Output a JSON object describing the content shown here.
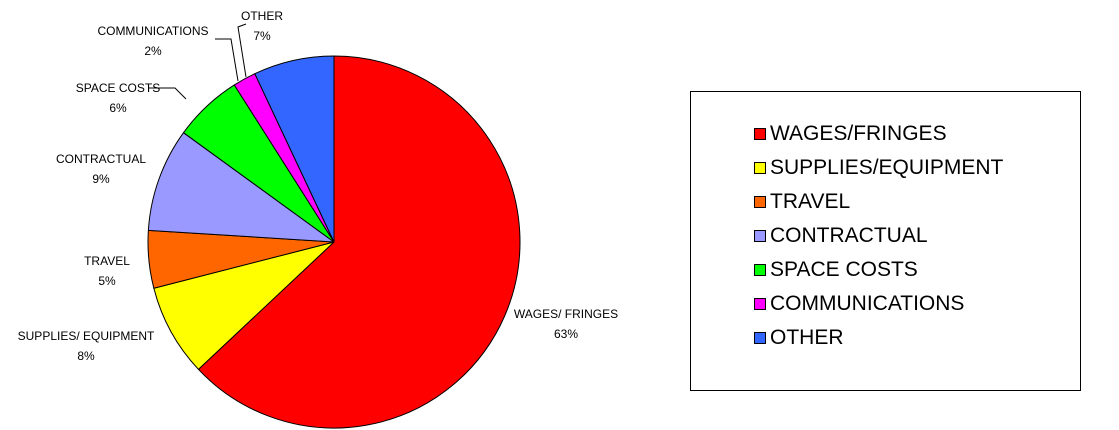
{
  "chart_data": {
    "type": "pie",
    "slices": [
      {
        "label": "WAGES/ FRINGES",
        "legend": "WAGES/FRINGES",
        "value": 63,
        "percent_label": "63%",
        "color": "#ff0000"
      },
      {
        "label": "SUPPLIES/ EQUIPMENT",
        "legend": "SUPPLIES/EQUIPMENT",
        "value": 8,
        "percent_label": "8%",
        "color": "#ffff00"
      },
      {
        "label": "TRAVEL",
        "legend": "TRAVEL",
        "value": 5,
        "percent_label": "5%",
        "color": "#ff6600"
      },
      {
        "label": "CONTRACTUAL",
        "legend": "CONTRACTUAL",
        "value": 9,
        "percent_label": "9%",
        "color": "#9999ff"
      },
      {
        "label": "SPACE COSTS",
        "legend": "SPACE COSTS",
        "value": 6,
        "percent_label": "6%",
        "color": "#00ff00"
      },
      {
        "label": "COMMUNICATIONS",
        "legend": "COMMUNICATIONS",
        "value": 2,
        "percent_label": "2%",
        "color": "#ff00ff"
      },
      {
        "label": "OTHER",
        "legend": "OTHER",
        "value": 7,
        "percent_label": "7%",
        "color": "#3366ff"
      }
    ],
    "legend_position": "right",
    "start_angle_deg": 0,
    "direction": "clockwise"
  }
}
